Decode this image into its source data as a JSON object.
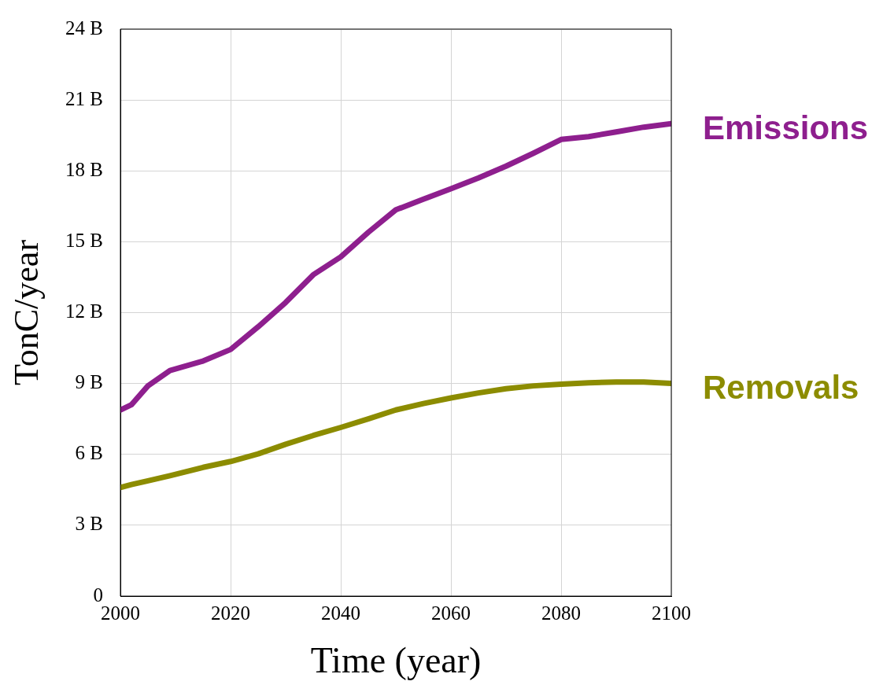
{
  "chart_data": {
    "type": "line",
    "xlabel": "Time (year)",
    "ylabel": "TonC/year",
    "x": [
      2000,
      2002,
      2005,
      2009,
      2015,
      2020,
      2025,
      2030,
      2035,
      2040,
      2045,
      2050,
      2055,
      2060,
      2065,
      2070,
      2075,
      2080,
      2085,
      2090,
      2095,
      2100
    ],
    "series": [
      {
        "name": "Emissions",
        "color": "#8e1f8e",
        "values": [
          7.88,
          8.1,
          8.9,
          9.55,
          9.95,
          10.44,
          11.4,
          12.43,
          13.6,
          14.36,
          15.4,
          16.35,
          16.8,
          17.24,
          17.7,
          18.2,
          18.75,
          19.33,
          19.45,
          19.65,
          19.85,
          20.0
        ]
      },
      {
        "name": "Removals",
        "color": "#8c8c00",
        "values": [
          4.6,
          4.72,
          4.88,
          5.1,
          5.45,
          5.7,
          6.02,
          6.43,
          6.8,
          7.14,
          7.5,
          7.88,
          8.15,
          8.39,
          8.6,
          8.78,
          8.9,
          8.97,
          9.03,
          9.06,
          9.06,
          9.0
        ]
      }
    ],
    "xlim": [
      2000,
      2100
    ],
    "xticks": [
      2000,
      2020,
      2040,
      2060,
      2080,
      2100
    ],
    "ylim": [
      0,
      24
    ],
    "yticks": [
      {
        "value": 0,
        "label": "0"
      },
      {
        "value": 3,
        "label": "3 B"
      },
      {
        "value": 6,
        "label": "6 B"
      },
      {
        "value": 9,
        "label": "9 B"
      },
      {
        "value": 12,
        "label": "12 B"
      },
      {
        "value": 15,
        "label": "15 B"
      },
      {
        "value": 18,
        "label": "18 B"
      },
      {
        "value": 21,
        "label": "21 B"
      },
      {
        "value": 24,
        "label": "24 B"
      }
    ],
    "grid": true,
    "legend": false,
    "marker": "none",
    "line_style": "solid"
  }
}
